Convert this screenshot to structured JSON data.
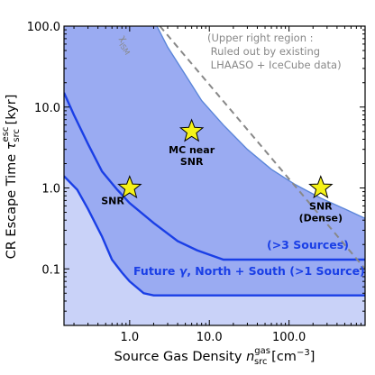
{
  "chart_data": {
    "type": "area",
    "xlabel": "Source Gas Density",
    "xlabel_symbol": "n",
    "xlabel_sup": "gas",
    "xlabel_sub": "src",
    "xlabel_unit": "[cm",
    "xlabel_unit_exp": "−3",
    "xlabel_unit_close": "]",
    "ylabel": "CR Escape Time",
    "ylabel_symbol": "τ",
    "ylabel_sup": "esc",
    "ylabel_sub": "src",
    "ylabel_unit": "[kyr]",
    "x_scale": "log",
    "y_scale": "log",
    "xlim": [
      0.15,
      900
    ],
    "ylim": [
      0.02,
      100
    ],
    "x_ticks": [
      {
        "value": 1,
        "label": "1.0"
      },
      {
        "value": 10,
        "label": "10.0"
      },
      {
        "value": 100,
        "label": "100.0"
      }
    ],
    "y_ticks": [
      {
        "value": 0.1,
        "label": "0.1"
      },
      {
        "value": 1,
        "label": "1.0"
      },
      {
        "value": 10,
        "label": "10.0"
      },
      {
        "value": 100,
        "label": "100.0"
      }
    ],
    "series": [
      {
        "label": "Future γ, North + South (>1 Source)",
        "label_parts": [
          "Future ",
          "γ",
          ", North + South (>1 Source)"
        ],
        "fill": "#c9d2f8",
        "line": "#1a3fe6",
        "x": [
          0.15,
          0.22,
          0.3,
          0.45,
          0.6,
          0.8,
          1.0,
          1.5,
          2.0,
          1000
        ],
        "y": [
          1.4,
          0.95,
          0.55,
          0.25,
          0.13,
          0.09,
          0.07,
          0.05,
          0.047,
          0.047
        ]
      },
      {
        "label": ">3 Sources",
        "label_text": "(>3 Sources)",
        "fill": "#9aabf2",
        "line": "#1a3fe6",
        "x": [
          0.15,
          0.2,
          0.3,
          0.45,
          0.7,
          1.0,
          2.0,
          4.0,
          7.0,
          10.0,
          15.0,
          1000
        ],
        "y": [
          15,
          8,
          3.5,
          1.6,
          0.95,
          0.65,
          0.37,
          0.22,
          0.17,
          0.15,
          0.13,
          0.13
        ]
      },
      {
        "label": "Upper right region : Ruled out by existing LHAASO + IceCube data",
        "fill": "#9aabf2",
        "line": "#5b86d9",
        "x": [
          2.2,
          3.0,
          5.0,
          8.0,
          15.0,
          30.0,
          60.0,
          120.0,
          250.0,
          500.0,
          900.0
        ],
        "y": [
          100,
          55,
          25,
          12,
          6,
          3,
          1.7,
          1.1,
          0.75,
          0.55,
          0.42
        ]
      }
    ],
    "reference_line": {
      "label": "χ",
      "label_sub": "ISM",
      "color": "#888888",
      "style": "dashed",
      "x": [
        2.4,
        900
      ],
      "y": [
        100,
        0.1
      ]
    },
    "annotation": {
      "lines": [
        "(Upper right region :",
        " Ruled out by existing",
        " LHAASO + IceCube data)"
      ]
    },
    "points": [
      {
        "name": "SNR",
        "lines": [
          "SNR"
        ],
        "x": 1.0,
        "y": 1.0,
        "label_side": "left"
      },
      {
        "name": "MC near SNR",
        "lines": [
          "MC near",
          "SNR"
        ],
        "x": 6.0,
        "y": 5.0,
        "label_side": "below"
      },
      {
        "name": "SNR (Dense)",
        "lines": [
          "SNR",
          "(Dense)"
        ],
        "x": 250.0,
        "y": 1.0,
        "label_side": "below"
      }
    ],
    "star_color": "#f5f218",
    "grid": false
  }
}
